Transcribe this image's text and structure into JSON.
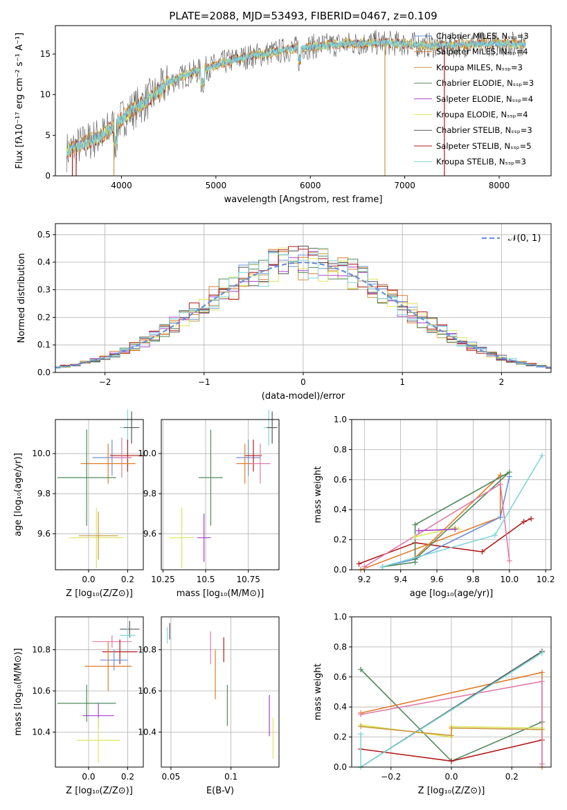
{
  "title": "PLATE=2088, MJD=53493, FIBERID=0467, z=0.109",
  "colors": {
    "chabrier_miles": "#6a8fd8",
    "salpeter_miles": "#e07b2a",
    "kroupa_miles": "#c99840",
    "chabrier_elodie": "#4f8a5c",
    "salpeter_elodie": "#a63fc9",
    "kroupa_elodie": "#dde65c",
    "chabrier_stelib": "#555555",
    "salpeter_stelib": "#b01a1a",
    "kroupa_stelib": "#7fd6d6",
    "pink": "#e07aa8",
    "normal": "#6a8fd8"
  },
  "chart_data": [
    {
      "type": "line",
      "name": "spectrum",
      "xlabel": "wavelength [Angstrom, rest frame]",
      "ylabel": "Flux [fλ10⁻¹⁷ erg cm⁻² s⁻¹ A⁻¹]",
      "xlim": [
        3300,
        8550
      ],
      "ylim": [
        0,
        18.5
      ],
      "xticks": [
        4000,
        5000,
        6000,
        7000,
        8000
      ],
      "yticks": [
        0,
        5,
        10,
        15
      ],
      "legend": [
        "Chabrier MILES, Nₛₛₚ=3",
        "Salpeter MILES, Nₛₛₚ=4",
        "Kroupa MILES, Nₛₛₚ=3",
        "Chabrier ELODIE, Nₛₛₚ=3",
        "Salpeter ELODIE, Nₛₛₚ=4",
        "Kroupa ELODIE, Nₛₛₚ=4",
        "Chabrier STELIB, Nₛₛₚ=3",
        "Salpeter STELIB, Nₛₛₚ=5",
        "Kroupa STELIB, Nₛₛₚ=3"
      ],
      "legend_position": "right",
      "continuum": [
        [
          3420,
          3
        ],
        [
          3600,
          4
        ],
        [
          3800,
          5
        ],
        [
          3950,
          6.5
        ],
        [
          4100,
          8
        ],
        [
          4300,
          9.5
        ],
        [
          4500,
          11.5
        ],
        [
          4700,
          12.5
        ],
        [
          4900,
          13.2
        ],
        [
          5100,
          14
        ],
        [
          5300,
          14.6
        ],
        [
          5500,
          15
        ],
        [
          5700,
          15.4
        ],
        [
          5900,
          15.8
        ],
        [
          6100,
          16
        ],
        [
          6300,
          16.2
        ],
        [
          6500,
          16.3
        ],
        [
          6700,
          16.4
        ],
        [
          6900,
          16.3
        ],
        [
          7100,
          16.2
        ],
        [
          7400,
          16
        ],
        [
          7700,
          16.2
        ],
        [
          8000,
          16.3
        ],
        [
          8280,
          16.2
        ]
      ],
      "dropouts": [
        [
          3480,
          0
        ],
        [
          3520,
          0
        ],
        [
          3920,
          0
        ],
        [
          6790,
          0
        ],
        [
          7420,
          0
        ]
      ],
      "grid": false
    },
    {
      "type": "histogram",
      "name": "residuals",
      "xlabel": "(data-model)/error",
      "ylabel": "Normed distribution",
      "xlim": [
        -2.5,
        2.5
      ],
      "ylim": [
        0,
        0.54
      ],
      "xticks": [
        -2,
        -1,
        0,
        1,
        2
      ],
      "yticks": [
        0,
        0.1,
        0.2,
        0.3,
        0.4,
        0.5
      ],
      "bin_width": 0.1,
      "legend": [
        "𝒩(0, 1)"
      ],
      "legend_position": "top-right",
      "grid": true
    },
    {
      "type": "scatter",
      "name": "age-vs-Z",
      "xlabel": "Z [log₁₀(Z/Z⊙)]",
      "ylabel": "age  [log₁₀(age/yr)]",
      "xlim": [
        -0.17,
        0.28
      ],
      "ylim": [
        9.42,
        10.17
      ],
      "xticks": [
        0.0,
        0.2
      ],
      "yticks": [
        9.6,
        9.8,
        10.0
      ],
      "points": [
        {
          "color": "kroupa_stelib",
          "x": 0.2,
          "y": 10.13,
          "xerr": 0.04,
          "yerr": 0.09
        },
        {
          "color": "chabrier_stelib",
          "x": 0.22,
          "y": 10.13,
          "xerr": 0.04,
          "yerr": 0.08
        },
        {
          "color": "chabrier_miles",
          "x": 0.12,
          "y": 9.98,
          "xerr": 0.1,
          "yerr": 0.09
        },
        {
          "color": "salpeter_stelib",
          "x": 0.2,
          "y": 9.99,
          "xerr": 0.09,
          "yerr": 0.08
        },
        {
          "color": "salpeter_miles",
          "x": 0.1,
          "y": 9.95,
          "xerr": 0.14,
          "yerr": 0.1
        },
        {
          "color": "pink",
          "x": 0.17,
          "y": 9.98,
          "xerr": 0.05,
          "yerr": 0.1
        },
        {
          "color": "chabrier_elodie",
          "x": -0.01,
          "y": 9.88,
          "xerr": 0.15,
          "yerr": 0.24
        },
        {
          "color": "kroupa_elodie",
          "x": 0.04,
          "y": 9.58,
          "xerr": 0.14,
          "yerr": 0.15
        },
        {
          "color": "kroupa_miles",
          "x": 0.05,
          "y": 9.59,
          "xerr": 0.1,
          "yerr": 0.12
        }
      ],
      "grid": true
    },
    {
      "type": "scatter",
      "name": "age-vs-mass",
      "xlabel": "mass [log₁₀(M/M⊙)]",
      "ylabel": "",
      "xlim": [
        10.24,
        10.93
      ],
      "ylim": [
        9.42,
        10.17
      ],
      "xticks": [
        10.25,
        10.5,
        10.75
      ],
      "yticks": [
        9.6,
        9.8,
        10.0
      ],
      "points": [
        {
          "color": "kroupa_stelib",
          "x": 10.87,
          "y": 10.13,
          "xerr": 0.03,
          "yerr": 0.09
        },
        {
          "color": "chabrier_stelib",
          "x": 10.89,
          "y": 10.13,
          "xerr": 0.03,
          "yerr": 0.08
        },
        {
          "color": "chabrier_miles",
          "x": 10.75,
          "y": 9.98,
          "xerr": 0.07,
          "yerr": 0.09
        },
        {
          "color": "salpeter_stelib",
          "x": 10.78,
          "y": 9.99,
          "xerr": 0.05,
          "yerr": 0.08
        },
        {
          "color": "salpeter_miles",
          "x": 10.73,
          "y": 9.95,
          "xerr": 0.05,
          "yerr": 0.1
        },
        {
          "color": "pink",
          "x": 10.82,
          "y": 9.95,
          "xerr": 0.06,
          "yerr": 0.1
        },
        {
          "color": "chabrier_elodie",
          "x": 10.53,
          "y": 9.88,
          "xerr": 0.07,
          "yerr": 0.24
        },
        {
          "color": "salpeter_elodie",
          "x": 10.49,
          "y": 9.58,
          "xerr": 0.04,
          "yerr": 0.12
        },
        {
          "color": "kroupa_elodie",
          "x": 10.36,
          "y": 9.58,
          "xerr": 0.07,
          "yerr": 0.15
        }
      ],
      "grid": true
    },
    {
      "type": "line",
      "name": "mass-weight-vs-age",
      "xlabel": "age  [log₁₀(age/yr)]",
      "ylabel": "mass weight",
      "xlim": [
        9.13,
        10.23
      ],
      "ylim": [
        0,
        1.0
      ],
      "xticks": [
        9.2,
        9.4,
        9.6,
        9.8,
        10.0,
        10.2
      ],
      "yticks": [
        0.0,
        0.2,
        0.4,
        0.6,
        0.8,
        1.0
      ],
      "series": [
        {
          "color": "salpeter_stelib",
          "x": [
            9.17,
            9.48,
            9.85,
            10.08,
            10.12
          ],
          "y": [
            0.04,
            0.18,
            0.12,
            0.32,
            0.34
          ]
        },
        {
          "color": "salpeter_miles",
          "x": [
            9.3,
            9.48,
            9.95,
            9.95,
            9.18
          ],
          "y": [
            0.02,
            0.08,
            0.63,
            0.35,
            0.0
          ]
        },
        {
          "color": "chabrier_miles",
          "x": [
            9.3,
            9.48,
            9.95,
            10.0
          ],
          "y": [
            0.02,
            0.07,
            0.35,
            0.62
          ]
        },
        {
          "color": "chabrier_elodie",
          "x": [
            9.3,
            9.48,
            9.48,
            10.0,
            9.48
          ],
          "y": [
            0.02,
            0.05,
            0.3,
            0.65,
            0.07
          ]
        },
        {
          "color": "pink",
          "x": [
            9.2,
            9.95,
            10.0
          ],
          "y": [
            0.02,
            0.57,
            0.06
          ]
        },
        {
          "color": "kroupa_stelib",
          "x": [
            9.3,
            9.92,
            10.18
          ],
          "y": [
            0.02,
            0.23,
            0.76
          ]
        },
        {
          "color": "kroupa_elodie",
          "x": [
            9.48,
            9.7,
            9.72
          ],
          "y": [
            0.22,
            0.28,
            0.27
          ]
        },
        {
          "color": "salpeter_elodie",
          "x": [
            9.5,
            9.7
          ],
          "y": [
            0.26,
            0.27
          ]
        }
      ],
      "grid": true
    },
    {
      "type": "scatter",
      "name": "mass-vs-Z",
      "xlabel": "Z [log₁₀(Z/Z⊙)]",
      "ylabel": "mass [log₁₀(M/M⊙)]",
      "xlim": [
        -0.17,
        0.28
      ],
      "ylim": [
        10.23,
        10.96
      ],
      "xticks": [
        0.0,
        0.2
      ],
      "yticks": [
        10.4,
        10.6,
        10.8
      ],
      "points": [
        {
          "color": "chabrier_stelib",
          "x": 0.21,
          "y": 10.9,
          "xerr": 0.05,
          "yerr": 0.04
        },
        {
          "color": "kroupa_stelib",
          "x": 0.2,
          "y": 10.87,
          "xerr": 0.04,
          "yerr": 0.04
        },
        {
          "color": "pink",
          "x": 0.12,
          "y": 10.84,
          "xerr": 0.1,
          "yerr": 0.03
        },
        {
          "color": "salpeter_stelib",
          "x": 0.16,
          "y": 10.79,
          "xerr": 0.09,
          "yerr": 0.06
        },
        {
          "color": "chabrier_miles",
          "x": 0.13,
          "y": 10.75,
          "xerr": 0.07,
          "yerr": 0.05
        },
        {
          "color": "salpeter_miles",
          "x": 0.1,
          "y": 10.72,
          "xerr": 0.12,
          "yerr": 0.12
        },
        {
          "color": "chabrier_elodie",
          "x": -0.01,
          "y": 10.54,
          "xerr": 0.15,
          "yerr": 0.09
        },
        {
          "color": "salpeter_elodie",
          "x": 0.05,
          "y": 10.48,
          "xerr": 0.08,
          "yerr": 0.06
        },
        {
          "color": "kroupa_elodie",
          "x": 0.05,
          "y": 10.36,
          "xerr": 0.11,
          "yerr": 0.11
        }
      ],
      "grid": true
    },
    {
      "type": "scatter",
      "name": "mass-vs-EBV",
      "xlabel": "E(B-V)",
      "ylabel": "",
      "xlim": [
        0.042,
        0.14
      ],
      "ylim": [
        10.23,
        10.96
      ],
      "xticks": [
        0.05,
        0.1
      ],
      "yticks": [
        10.4,
        10.6,
        10.8
      ],
      "points": [
        {
          "color": "kroupa_stelib",
          "x": 0.047,
          "y": 10.87,
          "xerr": 0,
          "yerr": 0.04
        },
        {
          "color": "chabrier_stelib",
          "x": 0.049,
          "y": 10.89,
          "xerr": 0,
          "yerr": 0.04
        },
        {
          "color": "pink",
          "x": 0.083,
          "y": 10.81,
          "xerr": 0,
          "yerr": 0.08
        },
        {
          "color": "salpeter_miles",
          "x": 0.087,
          "y": 10.68,
          "xerr": 0,
          "yerr": 0.12
        },
        {
          "color": "salpeter_stelib",
          "x": 0.094,
          "y": 10.8,
          "xerr": 0,
          "yerr": 0.06
        },
        {
          "color": "chabrier_elodie",
          "x": 0.097,
          "y": 10.53,
          "xerr": 0,
          "yerr": 0.1
        },
        {
          "color": "salpeter_elodie",
          "x": 0.132,
          "y": 10.48,
          "xerr": 0,
          "yerr": 0.1
        },
        {
          "color": "kroupa_elodie",
          "x": 0.135,
          "y": 10.37,
          "xerr": 0,
          "yerr": 0.1
        }
      ],
      "grid": true
    },
    {
      "type": "line",
      "name": "mass-weight-vs-Z",
      "xlabel": "Z [log₁₀(Z/Z⊙)]",
      "ylabel": "mass weight",
      "xlim": [
        -0.33,
        0.33
      ],
      "ylim": [
        0,
        1.0
      ],
      "xticks": [
        -0.2,
        0.0,
        0.2
      ],
      "yticks": [
        0.0,
        0.2,
        0.4,
        0.6,
        0.8,
        1.0
      ],
      "series": [
        {
          "color": "chabrier_elodie",
          "x": [
            -0.3,
            0.0,
            0.3
          ],
          "y": [
            0.65,
            0.04,
            0.3
          ]
        },
        {
          "color": "salpeter_stelib",
          "x": [
            -0.3,
            0.0,
            0.3
          ],
          "y": [
            0.12,
            0.04,
            0.18
          ]
        },
        {
          "color": "salpeter_miles",
          "x": [
            -0.3,
            0.3,
            0.3
          ],
          "y": [
            0.36,
            0.63,
            0.0
          ]
        },
        {
          "color": "pink",
          "x": [
            -0.3,
            0.3,
            0.3
          ],
          "y": [
            0.35,
            0.57,
            0.02
          ]
        },
        {
          "color": "chabrier_stelib",
          "x": [
            -0.3,
            0.3
          ],
          "y": [
            0.0,
            0.77
          ]
        },
        {
          "color": "kroupa_stelib",
          "x": [
            -0.3,
            -0.3,
            0.3
          ],
          "y": [
            0.22,
            0.0,
            0.76
          ]
        },
        {
          "color": "kroupa_elodie",
          "x": [
            -0.3,
            0.0,
            0.0,
            0.3
          ],
          "y": [
            0.28,
            0.2,
            0.27,
            0.26
          ]
        },
        {
          "color": "kroupa_miles",
          "x": [
            -0.3,
            0.0,
            0.0,
            0.3
          ],
          "y": [
            0.27,
            0.21,
            0.26,
            0.25
          ]
        }
      ],
      "grid": true
    }
  ]
}
